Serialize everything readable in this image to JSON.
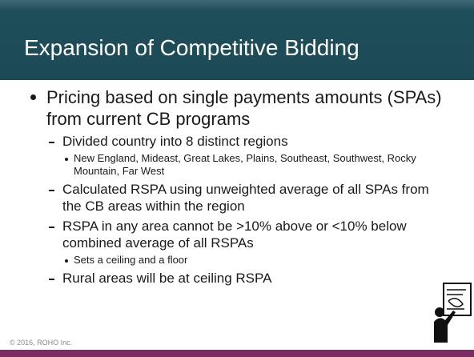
{
  "title": "Expansion of Competitive Bidding",
  "bullets": [
    {
      "text": "Pricing based on single payments amounts (SPAs) from current CB programs",
      "children": [
        {
          "text": "Divided country into 8 distinct regions",
          "children": [
            {
              "text": "New England, Mideast, Great Lakes, Plains, Southeast, Southwest, Rocky Mountain, Far West"
            }
          ]
        },
        {
          "text": "Calculated RSPA using unweighted average of all SPAs from the CB areas within the region"
        },
        {
          "text": "RSPA in any area cannot be >10% above or <10% below combined average of all RSPAs",
          "children": [
            {
              "text": "Sets a ceiling and a floor"
            }
          ]
        },
        {
          "text": "Rural areas will be at ceiling RSPA"
        }
      ]
    }
  ],
  "footer": "© 2016, ROHO Inc."
}
